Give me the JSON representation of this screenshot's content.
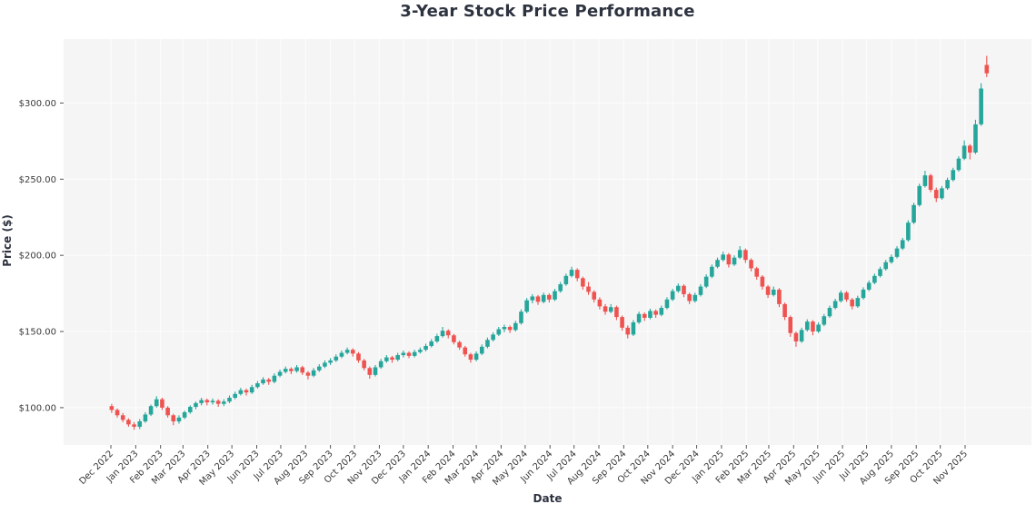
{
  "title": "3-Year Stock Price Performance",
  "chart_data": {
    "type": "candlestick",
    "title": "3-Year Stock Price Performance",
    "xlabel": "Date",
    "ylabel": "Price ($)",
    "legend": null,
    "grid": true,
    "ylim": [
      75.5,
      342
    ],
    "y_ticks": [
      100,
      150,
      200,
      250,
      300
    ],
    "y_tick_labels": [
      "$100.00",
      "$150.00",
      "$200.00",
      "$250.00",
      "$300.00"
    ],
    "x_tick_labels": [
      "Dec 2022",
      "Jan 2023",
      "Feb 2023",
      "Mar 2023",
      "Apr 2023",
      "May 2023",
      "Jun 2023",
      "Jul 2023",
      "Aug 2023",
      "Sep 2023",
      "Oct 2023",
      "Nov 2023",
      "Dec 2023",
      "Jan 2024",
      "Feb 2024",
      "Mar 2024",
      "Apr 2024",
      "May 2024",
      "Jun 2024",
      "Jul 2024",
      "Aug 2024",
      "Sep 2024",
      "Oct 2024",
      "Nov 2024",
      "Dec 2024",
      "Jan 2025",
      "Feb 2025",
      "Mar 2025",
      "Apr 2025",
      "May 2025",
      "Jun 2025",
      "Jul 2025",
      "Aug 2025",
      "Sep 2025",
      "Oct 2025",
      "Nov 2025"
    ],
    "x_range": [
      "2022-12-01",
      "2025-12-03"
    ],
    "frequency": "weekly",
    "up_color": "#26a69a",
    "down_color": "#ef5350",
    "plot_background": "#f5f5f6",
    "grid_color": "#fcfcfd",
    "text_color": "#2e3340",
    "tick_mark_color": "#555555",
    "ohlc_columns": [
      "date",
      "open",
      "high",
      "low",
      "close"
    ],
    "ohlc": [
      [
        "2022-12-02",
        101.0,
        102.5,
        96.5,
        98.5
      ],
      [
        "2022-12-09",
        98.5,
        99.5,
        93.5,
        95.0
      ],
      [
        "2022-12-16",
        95.0,
        96.5,
        90.5,
        92.0
      ],
      [
        "2022-12-23",
        92.0,
        93.0,
        87.5,
        89.0
      ],
      [
        "2022-12-30",
        89.0,
        90.5,
        85.5,
        87.5
      ],
      [
        "2023-01-06",
        87.5,
        92.5,
        86.0,
        91.0
      ],
      [
        "2023-01-13",
        91.0,
        97.0,
        90.0,
        95.5
      ],
      [
        "2023-01-20",
        95.5,
        102.0,
        94.5,
        101.0
      ],
      [
        "2023-01-27",
        101.0,
        107.5,
        100.0,
        105.5
      ],
      [
        "2023-02-03",
        105.5,
        106.5,
        98.5,
        100.0
      ],
      [
        "2023-02-10",
        100.0,
        101.0,
        93.5,
        95.0
      ],
      [
        "2023-02-17",
        95.0,
        96.0,
        88.5,
        91.0
      ],
      [
        "2023-02-24",
        91.0,
        95.0,
        89.5,
        93.5
      ],
      [
        "2023-03-03",
        93.5,
        98.0,
        92.5,
        97.0
      ],
      [
        "2023-03-10",
        97.0,
        101.5,
        96.0,
        100.5
      ],
      [
        "2023-03-17",
        100.5,
        104.0,
        99.0,
        103.0
      ],
      [
        "2023-03-24",
        103.0,
        106.5,
        101.5,
        105.0
      ],
      [
        "2023-03-31",
        105.0,
        106.0,
        101.5,
        103.5
      ],
      [
        "2023-04-07",
        103.5,
        106.0,
        102.0,
        104.5
      ],
      [
        "2023-04-14",
        104.5,
        105.5,
        100.5,
        102.5
      ],
      [
        "2023-04-21",
        102.5,
        105.5,
        101.0,
        104.0
      ],
      [
        "2023-04-28",
        104.0,
        108.0,
        103.0,
        106.5
      ],
      [
        "2023-05-05",
        106.5,
        110.5,
        105.5,
        109.0
      ],
      [
        "2023-05-12",
        109.0,
        113.0,
        108.0,
        111.5
      ],
      [
        "2023-05-19",
        111.5,
        112.5,
        108.0,
        110.0
      ],
      [
        "2023-05-26",
        110.0,
        115.0,
        109.0,
        113.5
      ],
      [
        "2023-06-02",
        113.5,
        117.5,
        112.5,
        116.0
      ],
      [
        "2023-06-09",
        116.0,
        120.0,
        115.0,
        118.5
      ],
      [
        "2023-06-16",
        118.5,
        119.5,
        115.0,
        117.0
      ],
      [
        "2023-06-23",
        117.0,
        122.5,
        116.0,
        121.0
      ],
      [
        "2023-06-30",
        121.0,
        125.0,
        120.0,
        123.5
      ],
      [
        "2023-07-07",
        123.5,
        127.0,
        122.5,
        125.5
      ],
      [
        "2023-07-14",
        125.5,
        126.5,
        122.0,
        124.0
      ],
      [
        "2023-07-21",
        124.0,
        128.0,
        123.0,
        126.5
      ],
      [
        "2023-07-28",
        126.5,
        127.5,
        121.5,
        123.0
      ],
      [
        "2023-08-04",
        123.0,
        124.0,
        118.5,
        121.0
      ],
      [
        "2023-08-11",
        121.0,
        126.0,
        120.0,
        124.5
      ],
      [
        "2023-08-18",
        124.5,
        128.5,
        123.5,
        127.0
      ],
      [
        "2023-08-25",
        127.0,
        131.0,
        126.0,
        129.5
      ],
      [
        "2023-09-01",
        129.5,
        132.5,
        128.0,
        131.0
      ],
      [
        "2023-09-08",
        131.0,
        135.0,
        130.0,
        133.5
      ],
      [
        "2023-09-15",
        133.5,
        137.5,
        132.5,
        136.0
      ],
      [
        "2023-09-22",
        136.0,
        139.5,
        135.0,
        138.0
      ],
      [
        "2023-09-29",
        138.0,
        139.0,
        133.5,
        135.5
      ],
      [
        "2023-10-06",
        135.5,
        136.5,
        129.5,
        131.0
      ],
      [
        "2023-10-13",
        131.0,
        132.0,
        124.5,
        126.0
      ],
      [
        "2023-10-20",
        126.0,
        127.0,
        119.0,
        121.5
      ],
      [
        "2023-10-27",
        121.5,
        128.0,
        120.5,
        126.5
      ],
      [
        "2023-11-03",
        126.5,
        132.0,
        125.5,
        130.5
      ],
      [
        "2023-11-10",
        130.5,
        134.5,
        129.5,
        133.0
      ],
      [
        "2023-11-17",
        133.0,
        134.0,
        129.5,
        131.5
      ],
      [
        "2023-11-24",
        131.5,
        136.0,
        130.5,
        134.5
      ],
      [
        "2023-12-01",
        134.5,
        137.5,
        133.0,
        136.0
      ],
      [
        "2023-12-08",
        136.0,
        137.0,
        132.5,
        134.0
      ],
      [
        "2023-12-15",
        134.0,
        138.0,
        133.0,
        136.5
      ],
      [
        "2023-12-22",
        136.5,
        139.5,
        135.5,
        138.0
      ],
      [
        "2023-12-29",
        138.0,
        142.0,
        137.0,
        140.5
      ],
      [
        "2024-01-05",
        140.5,
        145.0,
        139.5,
        143.5
      ],
      [
        "2024-01-12",
        143.5,
        148.5,
        142.5,
        147.0
      ],
      [
        "2024-01-19",
        147.0,
        153.0,
        146.0,
        150.5
      ],
      [
        "2024-01-26",
        150.5,
        151.5,
        145.5,
        147.5
      ],
      [
        "2024-02-02",
        147.5,
        148.5,
        141.5,
        143.0
      ],
      [
        "2024-02-09",
        143.0,
        144.0,
        138.0,
        139.5
      ],
      [
        "2024-02-16",
        139.5,
        140.5,
        133.5,
        135.0
      ],
      [
        "2024-02-23",
        135.0,
        136.0,
        129.5,
        131.5
      ],
      [
        "2024-03-01",
        131.5,
        137.0,
        130.5,
        135.5
      ],
      [
        "2024-03-08",
        135.5,
        141.5,
        134.5,
        140.0
      ],
      [
        "2024-03-15",
        140.0,
        146.0,
        139.0,
        144.5
      ],
      [
        "2024-03-22",
        144.5,
        149.5,
        143.5,
        148.0
      ],
      [
        "2024-03-29",
        148.0,
        153.0,
        147.0,
        151.5
      ],
      [
        "2024-04-05",
        151.5,
        154.5,
        149.5,
        153.0
      ],
      [
        "2024-04-12",
        153.0,
        154.0,
        149.0,
        151.0
      ],
      [
        "2024-04-19",
        151.0,
        157.0,
        150.0,
        155.5
      ],
      [
        "2024-04-26",
        155.5,
        164.5,
        154.5,
        163.0
      ],
      [
        "2024-05-03",
        163.0,
        172.0,
        162.0,
        170.5
      ],
      [
        "2024-05-10",
        170.5,
        174.5,
        168.5,
        173.0
      ],
      [
        "2024-05-17",
        173.0,
        174.0,
        167.5,
        169.5
      ],
      [
        "2024-05-24",
        169.5,
        175.5,
        168.5,
        174.0
      ],
      [
        "2024-05-31",
        174.0,
        175.0,
        169.0,
        171.0
      ],
      [
        "2024-06-07",
        171.0,
        178.0,
        170.0,
        176.5
      ],
      [
        "2024-06-14",
        176.5,
        182.5,
        175.5,
        181.0
      ],
      [
        "2024-06-21",
        181.0,
        188.0,
        180.0,
        186.5
      ],
      [
        "2024-06-28",
        186.5,
        192.5,
        185.5,
        190.5
      ],
      [
        "2024-07-05",
        190.5,
        191.5,
        183.0,
        185.0
      ],
      [
        "2024-07-12",
        185.0,
        186.0,
        177.5,
        179.5
      ],
      [
        "2024-07-19",
        179.5,
        182.5,
        174.0,
        176.0
      ],
      [
        "2024-07-26",
        176.0,
        177.0,
        169.0,
        171.0
      ],
      [
        "2024-08-02",
        171.0,
        172.5,
        164.5,
        166.5
      ],
      [
        "2024-08-09",
        166.5,
        168.0,
        161.0,
        163.0
      ],
      [
        "2024-08-16",
        163.0,
        168.0,
        162.0,
        166.0
      ],
      [
        "2024-08-23",
        166.0,
        167.0,
        157.5,
        159.5
      ],
      [
        "2024-08-30",
        159.5,
        160.5,
        150.5,
        152.5
      ],
      [
        "2024-09-06",
        152.5,
        154.0,
        145.5,
        148.0
      ],
      [
        "2024-09-13",
        148.0,
        157.5,
        147.0,
        156.0
      ],
      [
        "2024-09-20",
        156.0,
        163.0,
        155.0,
        161.5
      ],
      [
        "2024-09-27",
        161.5,
        162.5,
        157.0,
        159.0
      ],
      [
        "2024-10-04",
        159.0,
        165.0,
        158.0,
        163.5
      ],
      [
        "2024-10-11",
        163.5,
        164.5,
        159.0,
        161.0
      ],
      [
        "2024-10-18",
        161.0,
        167.0,
        160.0,
        165.5
      ],
      [
        "2024-10-25",
        165.5,
        172.5,
        164.5,
        171.0
      ],
      [
        "2024-11-01",
        171.0,
        178.0,
        170.0,
        176.5
      ],
      [
        "2024-11-08",
        176.5,
        181.5,
        175.5,
        180.0
      ],
      [
        "2024-11-15",
        180.0,
        181.0,
        172.5,
        174.5
      ],
      [
        "2024-11-22",
        174.5,
        175.5,
        168.0,
        170.0
      ],
      [
        "2024-11-29",
        170.0,
        175.5,
        169.0,
        174.0
      ],
      [
        "2024-12-06",
        174.0,
        181.0,
        173.0,
        179.5
      ],
      [
        "2024-12-13",
        179.5,
        187.5,
        178.5,
        186.0
      ],
      [
        "2024-12-20",
        186.0,
        194.0,
        185.0,
        192.5
      ],
      [
        "2024-12-27",
        192.5,
        198.5,
        191.5,
        197.0
      ],
      [
        "2025-01-03",
        197.0,
        202.5,
        196.0,
        200.5
      ],
      [
        "2025-01-10",
        200.5,
        201.5,
        192.0,
        194.0
      ],
      [
        "2025-01-17",
        194.0,
        200.0,
        193.0,
        198.5
      ],
      [
        "2025-01-24",
        198.5,
        206.0,
        197.5,
        203.5
      ],
      [
        "2025-01-31",
        203.5,
        204.5,
        195.0,
        197.0
      ],
      [
        "2025-02-07",
        197.0,
        198.0,
        189.5,
        191.5
      ],
      [
        "2025-02-14",
        191.5,
        192.5,
        184.0,
        186.0
      ],
      [
        "2025-02-21",
        186.0,
        187.0,
        177.5,
        179.5
      ],
      [
        "2025-02-28",
        179.5,
        180.5,
        172.0,
        174.0
      ],
      [
        "2025-03-07",
        174.0,
        179.5,
        173.0,
        177.5
      ],
      [
        "2025-03-14",
        177.5,
        178.5,
        166.0,
        168.0
      ],
      [
        "2025-03-21",
        168.0,
        169.0,
        157.5,
        159.5
      ],
      [
        "2025-03-28",
        159.5,
        160.5,
        146.5,
        149.0
      ],
      [
        "2025-04-04",
        149.0,
        150.0,
        140.0,
        143.5
      ],
      [
        "2025-04-11",
        143.5,
        152.5,
        142.5,
        151.0
      ],
      [
        "2025-04-18",
        151.0,
        158.0,
        150.0,
        156.5
      ],
      [
        "2025-04-25",
        156.5,
        157.5,
        147.5,
        150.0
      ],
      [
        "2025-05-02",
        150.0,
        156.0,
        149.0,
        154.5
      ],
      [
        "2025-05-09",
        154.5,
        161.5,
        153.5,
        160.0
      ],
      [
        "2025-05-16",
        160.0,
        167.0,
        159.0,
        165.5
      ],
      [
        "2025-05-23",
        165.5,
        171.5,
        164.5,
        170.0
      ],
      [
        "2025-05-30",
        170.0,
        177.0,
        169.0,
        175.5
      ],
      [
        "2025-06-06",
        175.5,
        176.5,
        169.5,
        171.0
      ],
      [
        "2025-06-13",
        171.0,
        172.0,
        164.5,
        166.5
      ],
      [
        "2025-06-20",
        166.5,
        173.5,
        165.5,
        172.0
      ],
      [
        "2025-06-27",
        172.0,
        179.0,
        171.0,
        177.5
      ],
      [
        "2025-07-04",
        177.5,
        183.5,
        176.5,
        182.0
      ],
      [
        "2025-07-11",
        182.0,
        188.0,
        181.0,
        186.5
      ],
      [
        "2025-07-18",
        186.5,
        192.5,
        185.5,
        191.0
      ],
      [
        "2025-07-25",
        191.0,
        197.0,
        190.0,
        195.5
      ],
      [
        "2025-08-01",
        195.5,
        200.5,
        194.5,
        199.0
      ],
      [
        "2025-08-08",
        199.0,
        206.0,
        198.0,
        204.5
      ],
      [
        "2025-08-15",
        204.5,
        211.5,
        203.5,
        210.0
      ],
      [
        "2025-08-22",
        210.0,
        223.0,
        209.0,
        221.5
      ],
      [
        "2025-08-29",
        221.5,
        234.5,
        220.5,
        233.0
      ],
      [
        "2025-09-05",
        233.0,
        247.0,
        232.0,
        245.5
      ],
      [
        "2025-09-12",
        245.5,
        255.5,
        244.5,
        252.5
      ],
      [
        "2025-09-19",
        252.5,
        253.5,
        241.5,
        243.0
      ],
      [
        "2025-09-26",
        243.0,
        244.5,
        235.0,
        237.5
      ],
      [
        "2025-10-03",
        237.5,
        245.5,
        236.5,
        244.0
      ],
      [
        "2025-10-10",
        244.0,
        251.0,
        243.0,
        249.5
      ],
      [
        "2025-10-17",
        249.5,
        257.5,
        248.5,
        256.0
      ],
      [
        "2025-10-24",
        256.0,
        265.0,
        255.0,
        263.5
      ],
      [
        "2025-10-31",
        263.5,
        275.5,
        262.5,
        272.0
      ],
      [
        "2025-11-07",
        272.0,
        273.0,
        263.0,
        267.5
      ],
      [
        "2025-11-14",
        267.5,
        289.0,
        266.5,
        286.0
      ],
      [
        "2025-11-21",
        286.0,
        313.0,
        285.0,
        309.5
      ],
      [
        "2025-11-28",
        325.0,
        331.0,
        317.0,
        319.5
      ]
    ]
  }
}
